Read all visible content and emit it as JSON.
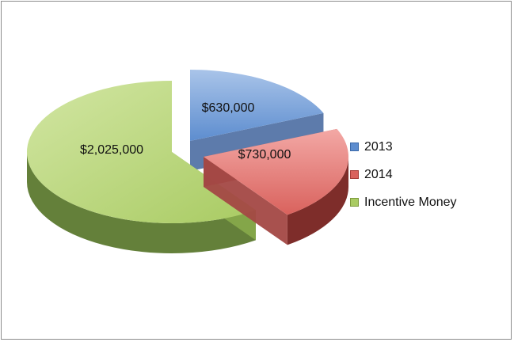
{
  "chart_data": {
    "type": "pie",
    "style": "3d-exploded",
    "slices": [
      {
        "label": "2013",
        "value": 630000,
        "value_label": "$630,000",
        "color": "#4f81bd"
      },
      {
        "label": "2014",
        "value": 730000,
        "value_label": "$730,000",
        "color": "#c0504d"
      },
      {
        "label": "Incentive Money",
        "value": 2025000,
        "value_label": "$2,025,000",
        "color": "#9bbb59"
      }
    ],
    "legend_position": "right",
    "title": ""
  }
}
